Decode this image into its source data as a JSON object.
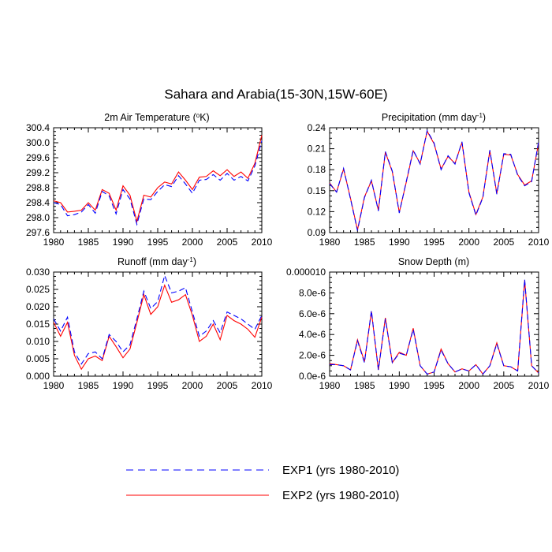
{
  "title": "Sahara and Arabia(15-30N,15W-60E)",
  "legend": [
    {
      "label": "EXP1 (yrs 1980-2010)",
      "color": "#0000ff",
      "dash": "dashed"
    },
    {
      "label": "EXP2 (yrs 1980-2010)",
      "color": "#ff0000",
      "dash": "solid"
    }
  ],
  "chart_data": [
    {
      "type": "line",
      "title": "2m Air Temperature (",
      "unit_sup": "o",
      "unit_suffix": "K)",
      "xlim": [
        1980,
        2010
      ],
      "ylim": [
        297.6,
        300.4
      ],
      "xticks": [
        "1980",
        "1985",
        "1990",
        "1995",
        "2000",
        "2005",
        "2010"
      ],
      "yticks": [
        "297.6",
        "298.0",
        "298.4",
        "298.8",
        "299.2",
        "299.6",
        "300.0",
        "300.4"
      ],
      "x": [
        1980,
        1981,
        1982,
        1983,
        1984,
        1985,
        1986,
        1987,
        1988,
        1989,
        1990,
        1991,
        1992,
        1993,
        1994,
        1995,
        1996,
        1997,
        1998,
        1999,
        2000,
        2001,
        2002,
        2003,
        2004,
        2005,
        2006,
        2007,
        2008,
        2009,
        2010
      ],
      "series": [
        {
          "name": "EXP1",
          "values": [
            298.4,
            298.35,
            298.05,
            298.08,
            298.15,
            298.35,
            298.12,
            298.7,
            298.58,
            298.1,
            298.75,
            298.5,
            297.82,
            298.5,
            298.48,
            298.7,
            298.88,
            298.83,
            299.12,
            298.9,
            298.65,
            299.0,
            299.02,
            299.15,
            299.0,
            299.18,
            299.0,
            299.1,
            298.98,
            299.38,
            300.05
          ]
        },
        {
          "name": "EXP2",
          "values": [
            298.45,
            298.4,
            298.15,
            298.17,
            298.2,
            298.4,
            298.2,
            298.75,
            298.65,
            298.2,
            298.85,
            298.6,
            297.9,
            298.6,
            298.55,
            298.8,
            298.95,
            298.9,
            299.22,
            299.0,
            298.75,
            299.08,
            299.1,
            299.25,
            299.12,
            299.28,
            299.1,
            299.22,
            299.05,
            299.45,
            300.2
          ]
        }
      ]
    },
    {
      "type": "line",
      "title": "Precipitation (mm day",
      "unit_sup": "-1",
      "unit_suffix": ")",
      "xlim": [
        1980,
        2010
      ],
      "ylim": [
        0.09,
        0.24
      ],
      "xticks": [
        "1980",
        "1985",
        "1990",
        "1995",
        "2000",
        "2005",
        "2010"
      ],
      "yticks": [
        "0.09",
        "0.12",
        "0.15",
        "0.18",
        "0.21",
        "0.24"
      ],
      "x": [
        1980,
        1981,
        1982,
        1983,
        1984,
        1985,
        1986,
        1987,
        1988,
        1989,
        1990,
        1991,
        1992,
        1993,
        1994,
        1995,
        1996,
        1997,
        1998,
        1999,
        2000,
        2001,
        2002,
        2003,
        2004,
        2005,
        2006,
        2007,
        2008,
        2009,
        2010
      ],
      "series": [
        {
          "name": "EXP1",
          "values": [
            0.16,
            0.148,
            0.182,
            0.138,
            0.093,
            0.14,
            0.165,
            0.121,
            0.206,
            0.178,
            0.118,
            0.163,
            0.208,
            0.188,
            0.236,
            0.218,
            0.18,
            0.2,
            0.188,
            0.22,
            0.147,
            0.115,
            0.14,
            0.208,
            0.145,
            0.203,
            0.202,
            0.172,
            0.157,
            0.163,
            0.22
          ]
        },
        {
          "name": "EXP2",
          "values": [
            0.161,
            0.148,
            0.181,
            0.139,
            0.094,
            0.141,
            0.164,
            0.122,
            0.205,
            0.177,
            0.119,
            0.162,
            0.207,
            0.189,
            0.235,
            0.217,
            0.181,
            0.199,
            0.189,
            0.219,
            0.148,
            0.116,
            0.141,
            0.207,
            0.146,
            0.202,
            0.201,
            0.173,
            0.158,
            0.164,
            0.218
          ]
        }
      ]
    },
    {
      "type": "line",
      "title": "Runoff (mm day",
      "unit_sup": "-1",
      "unit_suffix": ")",
      "xlim": [
        1980,
        2010
      ],
      "ylim": [
        0.0,
        0.03
      ],
      "xticks": [
        "1980",
        "1985",
        "1990",
        "1995",
        "2000",
        "2005",
        "2010"
      ],
      "yticks": [
        "0.000",
        "0.005",
        "0.010",
        "0.015",
        "0.020",
        "0.025",
        "0.030"
      ],
      "x": [
        1980,
        1981,
        1982,
        1983,
        1984,
        1985,
        1986,
        1987,
        1988,
        1989,
        1990,
        1991,
        1992,
        1993,
        1994,
        1995,
        1996,
        1997,
        1998,
        1999,
        2000,
        2001,
        2002,
        2003,
        2004,
        2005,
        2006,
        2007,
        2008,
        2009,
        2010
      ],
      "series": [
        {
          "name": "EXP1",
          "values": [
            0.0165,
            0.013,
            0.017,
            0.007,
            0.0035,
            0.0065,
            0.007,
            0.005,
            0.012,
            0.01,
            0.007,
            0.009,
            0.0165,
            0.0245,
            0.0195,
            0.0215,
            0.029,
            0.024,
            0.0245,
            0.0255,
            0.0185,
            0.0115,
            0.013,
            0.016,
            0.0125,
            0.0185,
            0.0175,
            0.0165,
            0.015,
            0.0135,
            0.0175
          ]
        },
        {
          "name": "EXP2",
          "values": [
            0.0155,
            0.0115,
            0.0155,
            0.006,
            0.002,
            0.005,
            0.0058,
            0.0045,
            0.0115,
            0.0085,
            0.0053,
            0.0078,
            0.0155,
            0.0235,
            0.0178,
            0.02,
            0.0262,
            0.0213,
            0.022,
            0.0235,
            0.0175,
            0.01,
            0.0115,
            0.015,
            0.0105,
            0.0175,
            0.016,
            0.015,
            0.0135,
            0.0112,
            0.017
          ]
        }
      ]
    },
    {
      "type": "line",
      "title": "Snow Depth (m)",
      "unit_sup": "",
      "unit_suffix": "",
      "xlim": [
        1980,
        2010
      ],
      "ylim": [
        0.0,
        1e-05
      ],
      "xticks": [
        "1980",
        "1985",
        "1990",
        "1995",
        "2000",
        "2005",
        "2010"
      ],
      "yticks": [
        "0.0e-6",
        "2.0e-6",
        "4.0e-6",
        "6.0e-6",
        "8.0e-6",
        "0.000010"
      ],
      "x": [
        1980,
        1981,
        1982,
        1983,
        1984,
        1985,
        1986,
        1987,
        1988,
        1989,
        1990,
        1991,
        1992,
        1993,
        1994,
        1995,
        1996,
        1997,
        1998,
        1999,
        2000,
        2001,
        2002,
        2003,
        2004,
        2005,
        2006,
        2007,
        2008,
        2009,
        2010
      ],
      "series": [
        {
          "name": "EXP1",
          "values": [
            1.1e-06,
            1.1e-06,
            1e-06,
            6e-07,
            3.4e-06,
            1.3e-06,
            6.3e-06,
            6e-07,
            5.5e-06,
            1.3e-06,
            2.2e-06,
            2e-06,
            4.5e-06,
            1e-06,
            2e-07,
            4e-07,
            2.5e-06,
            1.2e-06,
            4e-07,
            7e-07,
            5e-07,
            1.1e-06,
            2e-07,
            1e-06,
            3.1e-06,
            1e-06,
            9e-07,
            5e-07,
            9.3e-06,
            1e-06,
            3e-07
          ]
        },
        {
          "name": "EXP2",
          "values": [
            1.2e-06,
            1.1e-06,
            1e-06,
            6e-07,
            3.5e-06,
            1.4e-06,
            6.2e-06,
            6e-07,
            5.6e-06,
            1.3e-06,
            2.3e-06,
            2e-06,
            4.6e-06,
            1e-06,
            2e-07,
            4e-07,
            2.6e-06,
            1.2e-06,
            4e-07,
            7e-07,
            5e-07,
            1.1e-06,
            2e-07,
            1e-06,
            3.2e-06,
            1e-06,
            9e-07,
            5e-07,
            9.2e-06,
            1e-06,
            3e-07
          ]
        }
      ]
    }
  ]
}
